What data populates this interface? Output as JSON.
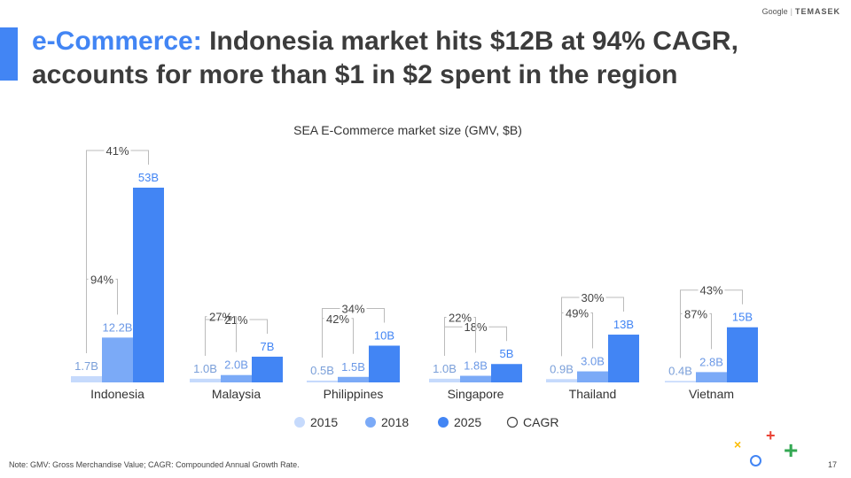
{
  "brand": {
    "google": "Google",
    "temasek": "TEMASEK"
  },
  "title": {
    "highlight": "e-Commerce:",
    "rest": " Indonesia market hits $12B at 94% CAGR, accounts for more than $1 in $2 spent in the region"
  },
  "colors": {
    "y2015": "#c6dafc",
    "y2018": "#7baaf7",
    "y2025": "#4285f4",
    "accent": "#4285f4"
  },
  "chart_data": {
    "type": "bar",
    "title": "SEA E-Commerce market size (GMV, $B)",
    "categories": [
      "Indonesia",
      "Malaysia",
      "Philippines",
      "Singapore",
      "Thailand",
      "Vietnam"
    ],
    "series": [
      {
        "name": "2015",
        "values": [
          1.7,
          1.0,
          0.5,
          1.0,
          0.9,
          0.4
        ],
        "labels": [
          "1.7B",
          "1.0B",
          "0.5B",
          "1.0B",
          "0.9B",
          "0.4B"
        ]
      },
      {
        "name": "2018",
        "values": [
          12.2,
          2.0,
          1.5,
          1.8,
          3.0,
          2.8
        ],
        "labels": [
          "12.2B",
          "2.0B",
          "1.5B",
          "1.8B",
          "3.0B",
          "2.8B"
        ]
      },
      {
        "name": "2025",
        "values": [
          53,
          7,
          10,
          5,
          13,
          15
        ],
        "labels": [
          "53B",
          "7B",
          "10B",
          "5B",
          "13B",
          "15B"
        ]
      }
    ],
    "cagr_2015_2018": [
      "94%",
      "27%",
      "42%",
      "22%",
      "49%",
      "87%"
    ],
    "cagr_2015_2025": [
      "41%",
      "21%",
      "34%",
      "18%",
      "30%",
      "43%"
    ],
    "legend": [
      "2015",
      "2018",
      "2025",
      "CAGR"
    ],
    "legend_position": "bottom"
  },
  "footnote": "Note:  GMV: Gross Merchandise Value; CAGR: Compounded Annual Growth Rate.",
  "page_number": "17",
  "logo_icons": [
    "yellow-x",
    "red-plus",
    "blue-circle",
    "green-plus"
  ]
}
